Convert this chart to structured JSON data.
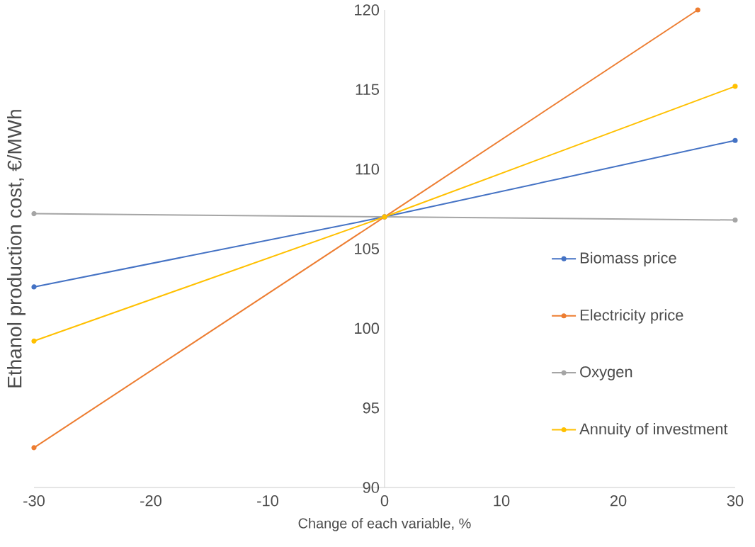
{
  "chart_data": {
    "type": "line",
    "xlabel": "Change of each variable, %",
    "ylabel": "Ethanol production cost, €/MWh",
    "xlim": [
      -30,
      30
    ],
    "ylim": [
      90,
      120
    ],
    "xticks": [
      -30,
      -20,
      -10,
      0,
      10,
      20,
      30
    ],
    "yticks": [
      90,
      95,
      100,
      105,
      110,
      115,
      120
    ],
    "grid": false,
    "legend": "right",
    "marker": "circle",
    "series": [
      {
        "name": "Biomass price",
        "color": "#4472c4",
        "x": [
          -30,
          0,
          30
        ],
        "values": [
          102.6,
          107.0,
          111.8
        ]
      },
      {
        "name": "Electricity price",
        "color": "#ed7d31",
        "x": [
          -30,
          0,
          26.8
        ],
        "values": [
          92.5,
          107.0,
          120
        ]
      },
      {
        "name": "Oxygen",
        "color": "#a5a5a5",
        "x": [
          -30,
          0,
          30
        ],
        "values": [
          107.2,
          107.0,
          106.8
        ]
      },
      {
        "name": "Annuity of investment",
        "color": "#ffc000",
        "x": [
          -30,
          0,
          30
        ],
        "values": [
          99.2,
          107.0,
          115.2
        ]
      }
    ]
  }
}
